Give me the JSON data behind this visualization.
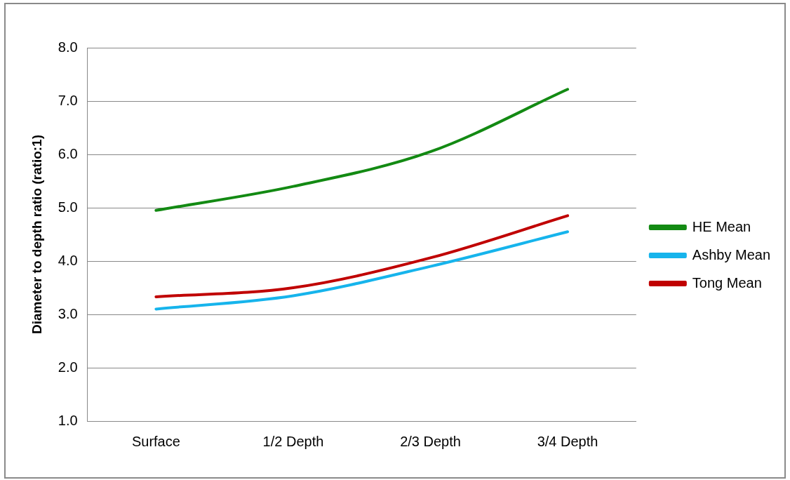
{
  "chart_data": {
    "type": "line",
    "ylabel": "Diameter to depth ratio (ratio:1)",
    "categories": [
      "Surface",
      "1/2 Depth",
      "2/3 Depth",
      "3/4 Depth"
    ],
    "series": [
      {
        "name": "HE Mean",
        "color": "#138a13",
        "values": [
          4.95,
          5.4,
          6.05,
          7.22
        ]
      },
      {
        "name": "Ashby Mean",
        "color": "#16b4ec",
        "values": [
          3.1,
          3.35,
          3.9,
          4.55
        ]
      },
      {
        "name": "Tong Mean",
        "color": "#c00000",
        "values": [
          3.33,
          3.5,
          4.06,
          4.85
        ]
      }
    ],
    "ylim": [
      1,
      8
    ],
    "yticks": [
      {
        "value": 1,
        "label": "1.0"
      },
      {
        "value": 2,
        "label": "2.0"
      },
      {
        "value": 3,
        "label": "3.0"
      },
      {
        "value": 4,
        "label": "4.0"
      },
      {
        "value": 5,
        "label": "5.0"
      },
      {
        "value": 6,
        "label": "6.0"
      },
      {
        "value": 7,
        "label": "7.0"
      },
      {
        "value": 8,
        "label": "8.0"
      }
    ],
    "grid": "y",
    "legend": "right",
    "marker": "none",
    "line_style": "solid"
  }
}
